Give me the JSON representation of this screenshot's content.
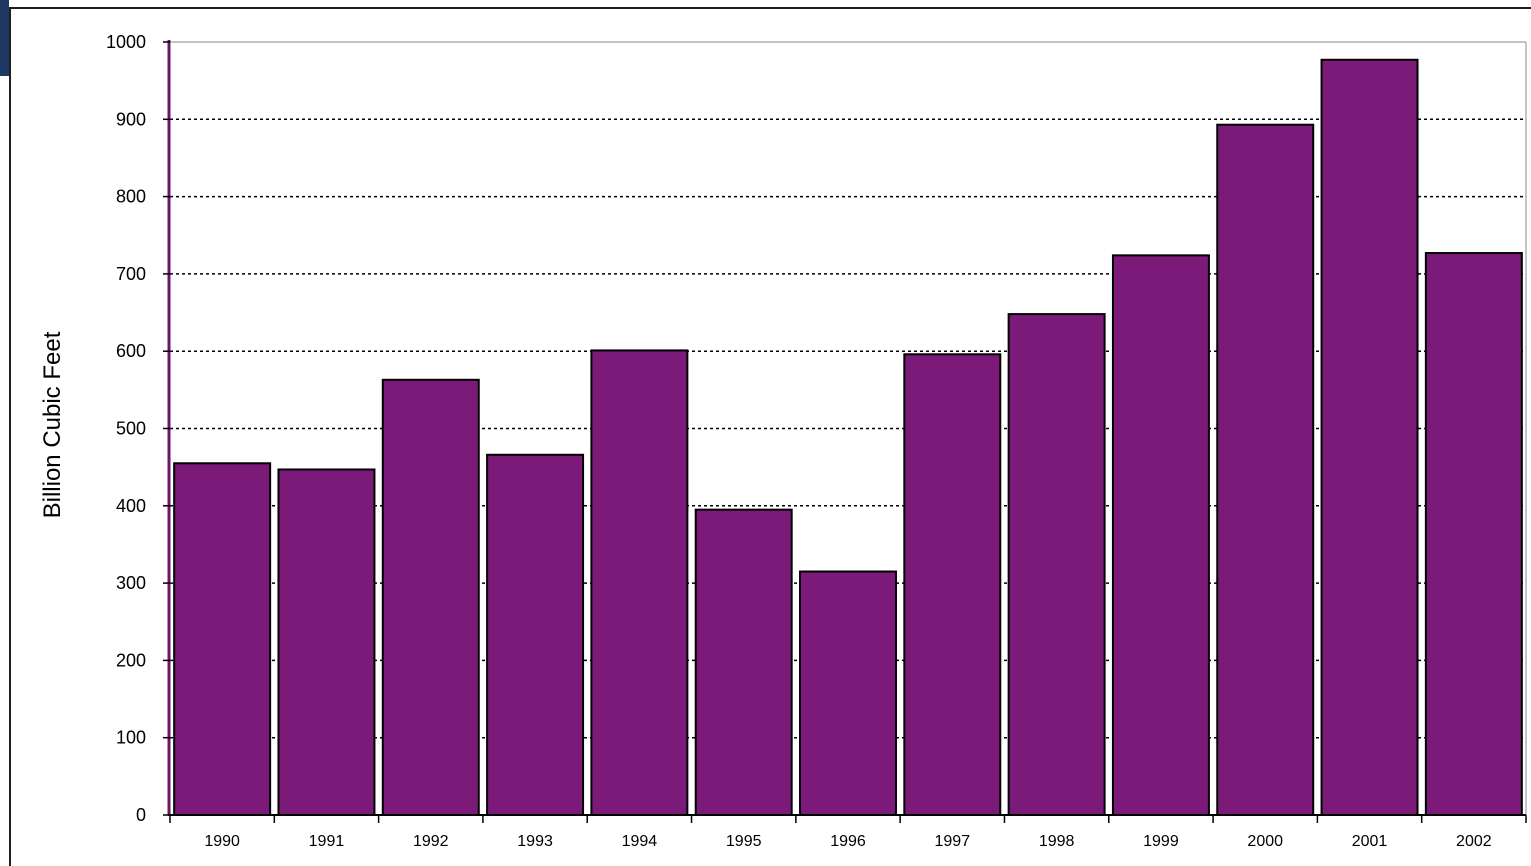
{
  "chart_data": {
    "type": "bar",
    "title": "",
    "xlabel": "",
    "ylabel": "Billion Cubic Feet",
    "categories": [
      "1990",
      "1991",
      "1992",
      "1993",
      "1994",
      "1995",
      "1996",
      "1997",
      "1998",
      "1999",
      "2000",
      "2001",
      "2002"
    ],
    "values": [
      455,
      447,
      563,
      466,
      601,
      395,
      315,
      596,
      648,
      724,
      893,
      977,
      727
    ],
    "ylim": [
      0,
      1000
    ],
    "yticks": [
      "0",
      "100",
      "200",
      "300",
      "400",
      "500",
      "600",
      "700",
      "800",
      "900",
      "1000"
    ],
    "grid": "horizontal dotted",
    "legend": "none",
    "bar_color": "#7b1a78",
    "bar_edge_color": "#000000"
  }
}
